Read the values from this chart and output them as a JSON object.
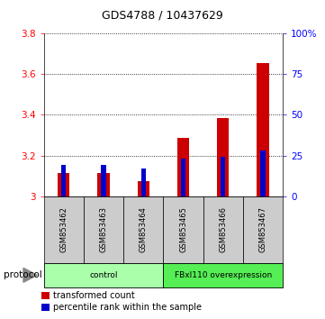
{
  "title": "GDS4788 / 10437629",
  "samples": [
    "GSM853462",
    "GSM853463",
    "GSM853464",
    "GSM853465",
    "GSM853466",
    "GSM853467"
  ],
  "red_values": [
    3.115,
    3.115,
    3.075,
    3.285,
    3.385,
    3.655
  ],
  "blue_values": [
    3.155,
    3.155,
    3.135,
    3.185,
    3.195,
    3.225
  ],
  "ylim_left": [
    3.0,
    3.8
  ],
  "ylim_right": [
    0,
    100
  ],
  "yticks_left": [
    3.0,
    3.2,
    3.4,
    3.6,
    3.8
  ],
  "yticks_right": [
    0,
    25,
    50,
    75,
    100
  ],
  "ytick_labels_right": [
    "0",
    "25",
    "50",
    "75",
    "100%"
  ],
  "groups": [
    {
      "label": "control",
      "n": 3,
      "color": "#aaffaa"
    },
    {
      "label": "FBxl110 overexpression",
      "n": 3,
      "color": "#55ee55"
    }
  ],
  "protocol_label": "protocol",
  "red_bar_width": 0.3,
  "blue_bar_width": 0.12,
  "red_color": "#cc0000",
  "blue_color": "#0000cc",
  "sample_area_color": "#cccccc",
  "legend_red": "transformed count",
  "legend_blue": "percentile rank within the sample",
  "title_fontsize": 9,
  "tick_fontsize": 7.5,
  "label_fontsize": 6,
  "legend_fontsize": 7
}
